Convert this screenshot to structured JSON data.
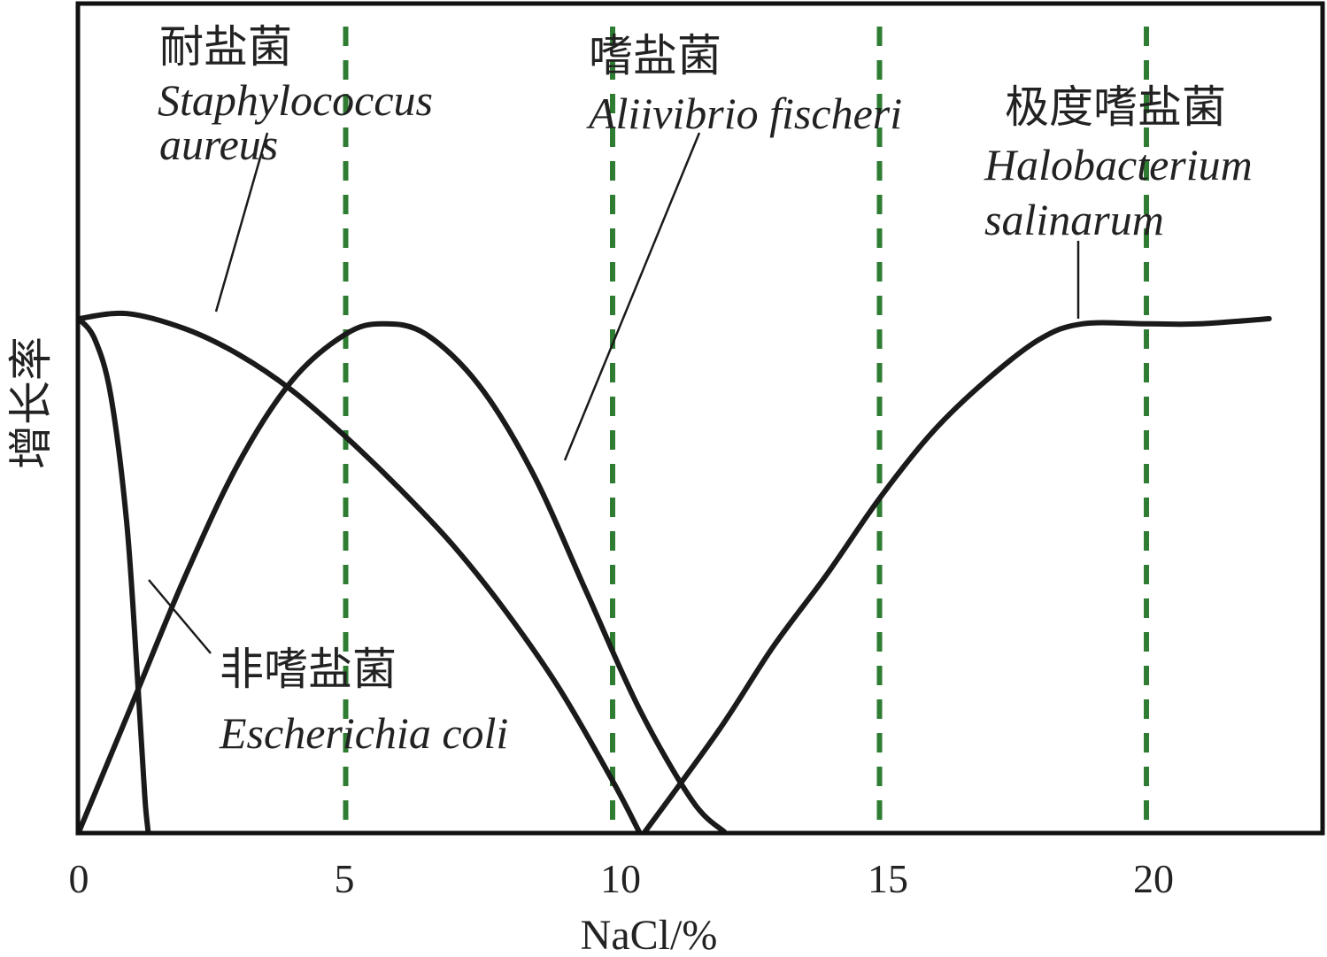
{
  "chart_data": {
    "type": "line",
    "title": "",
    "xlabel": "NaCl/%",
    "ylabel": "增长率",
    "xlim": [
      0,
      23.3
    ],
    "ylim": [
      0,
      1
    ],
    "x_ticks": [
      "0",
      "5",
      "10",
      "15",
      "20"
    ],
    "reference_lines": {
      "x": [
        5,
        10,
        15,
        20
      ],
      "color": "#2e7d32",
      "style": "dashed"
    },
    "series": [
      {
        "name": "非嗜盐菌 Escherichia coli",
        "cn_label": "非嗜盐菌",
        "latin_label": "Escherichia coli",
        "x": [
          0,
          0.3,
          0.6,
          0.9,
          1.1,
          1.2,
          1.25,
          1.3
        ],
        "y": [
          1.0,
          0.96,
          0.85,
          0.6,
          0.3,
          0.13,
          0.05,
          0.0
        ]
      },
      {
        "name": "耐盐菌 Staphylococcus aureus",
        "cn_label": "耐盐菌",
        "latin_label": "Staphylococcus aureus",
        "x": [
          0,
          0.9,
          2,
          3,
          4,
          5,
          6,
          7,
          8,
          9,
          10,
          10.5
        ],
        "y": [
          1.0,
          1.01,
          0.98,
          0.93,
          0.86,
          0.77,
          0.67,
          0.56,
          0.43,
          0.28,
          0.1,
          0.0
        ]
      },
      {
        "name": "嗜盐菌 Aliivibrio fischeri",
        "cn_label": "嗜盐菌",
        "latin_label": "Aliivibrio fischeri",
        "x": [
          0,
          1,
          2,
          3,
          4,
          5,
          5.7,
          6.5,
          7.5,
          8.5,
          9.5,
          10.5,
          11.5,
          12.1
        ],
        "y": [
          0.0,
          0.25,
          0.5,
          0.72,
          0.88,
          0.97,
          0.99,
          0.97,
          0.87,
          0.7,
          0.47,
          0.24,
          0.06,
          0.0
        ]
      },
      {
        "name": "极度嗜盐菌 Halobacterium salinarum",
        "cn_label": "极度嗜盐菌",
        "latin_label": "Halobacterium salinarum",
        "x": [
          10.6,
          12,
          13,
          14,
          15,
          16,
          17,
          18,
          18.8,
          20,
          21,
          22.3
        ],
        "y": [
          0.0,
          0.2,
          0.36,
          0.5,
          0.65,
          0.78,
          0.88,
          0.96,
          0.99,
          0.99,
          0.99,
          1.0
        ]
      }
    ]
  }
}
